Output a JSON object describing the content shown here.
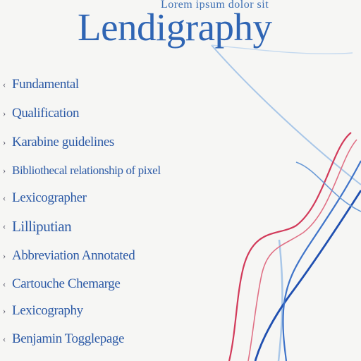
{
  "header": {
    "scribble": "Lorem ipsum dolor sit",
    "title": "Lendigraphy"
  },
  "list": {
    "items": [
      {
        "bullet": "‹",
        "label": "Fundamental"
      },
      {
        "bullet": "›",
        "label": "Qualification"
      },
      {
        "bullet": "›",
        "label": "Karabine guidelines"
      },
      {
        "bullet": "›",
        "label": "Bibliothecal relationship of pixel"
      },
      {
        "bullet": "‹",
        "label": "Lexicographer"
      },
      {
        "bullet": "‹",
        "label": "Lilliputian"
      },
      {
        "bullet": "›",
        "label": "Abbreviation Annotated"
      },
      {
        "bullet": "‹",
        "label": "Cartouche Chemarge"
      },
      {
        "bullet": "›",
        "label": "Lexicography"
      },
      {
        "bullet": "‹",
        "label": "Benjamin Togglepage"
      }
    ]
  },
  "colors": {
    "background": "#f6f6f4",
    "title": "#2f65b4",
    "list_text": "#2c5aa6",
    "curve_red": "#d23a5a",
    "curve_blue": "#1f4fb0",
    "curve_light_blue": "#a9c7e8"
  }
}
